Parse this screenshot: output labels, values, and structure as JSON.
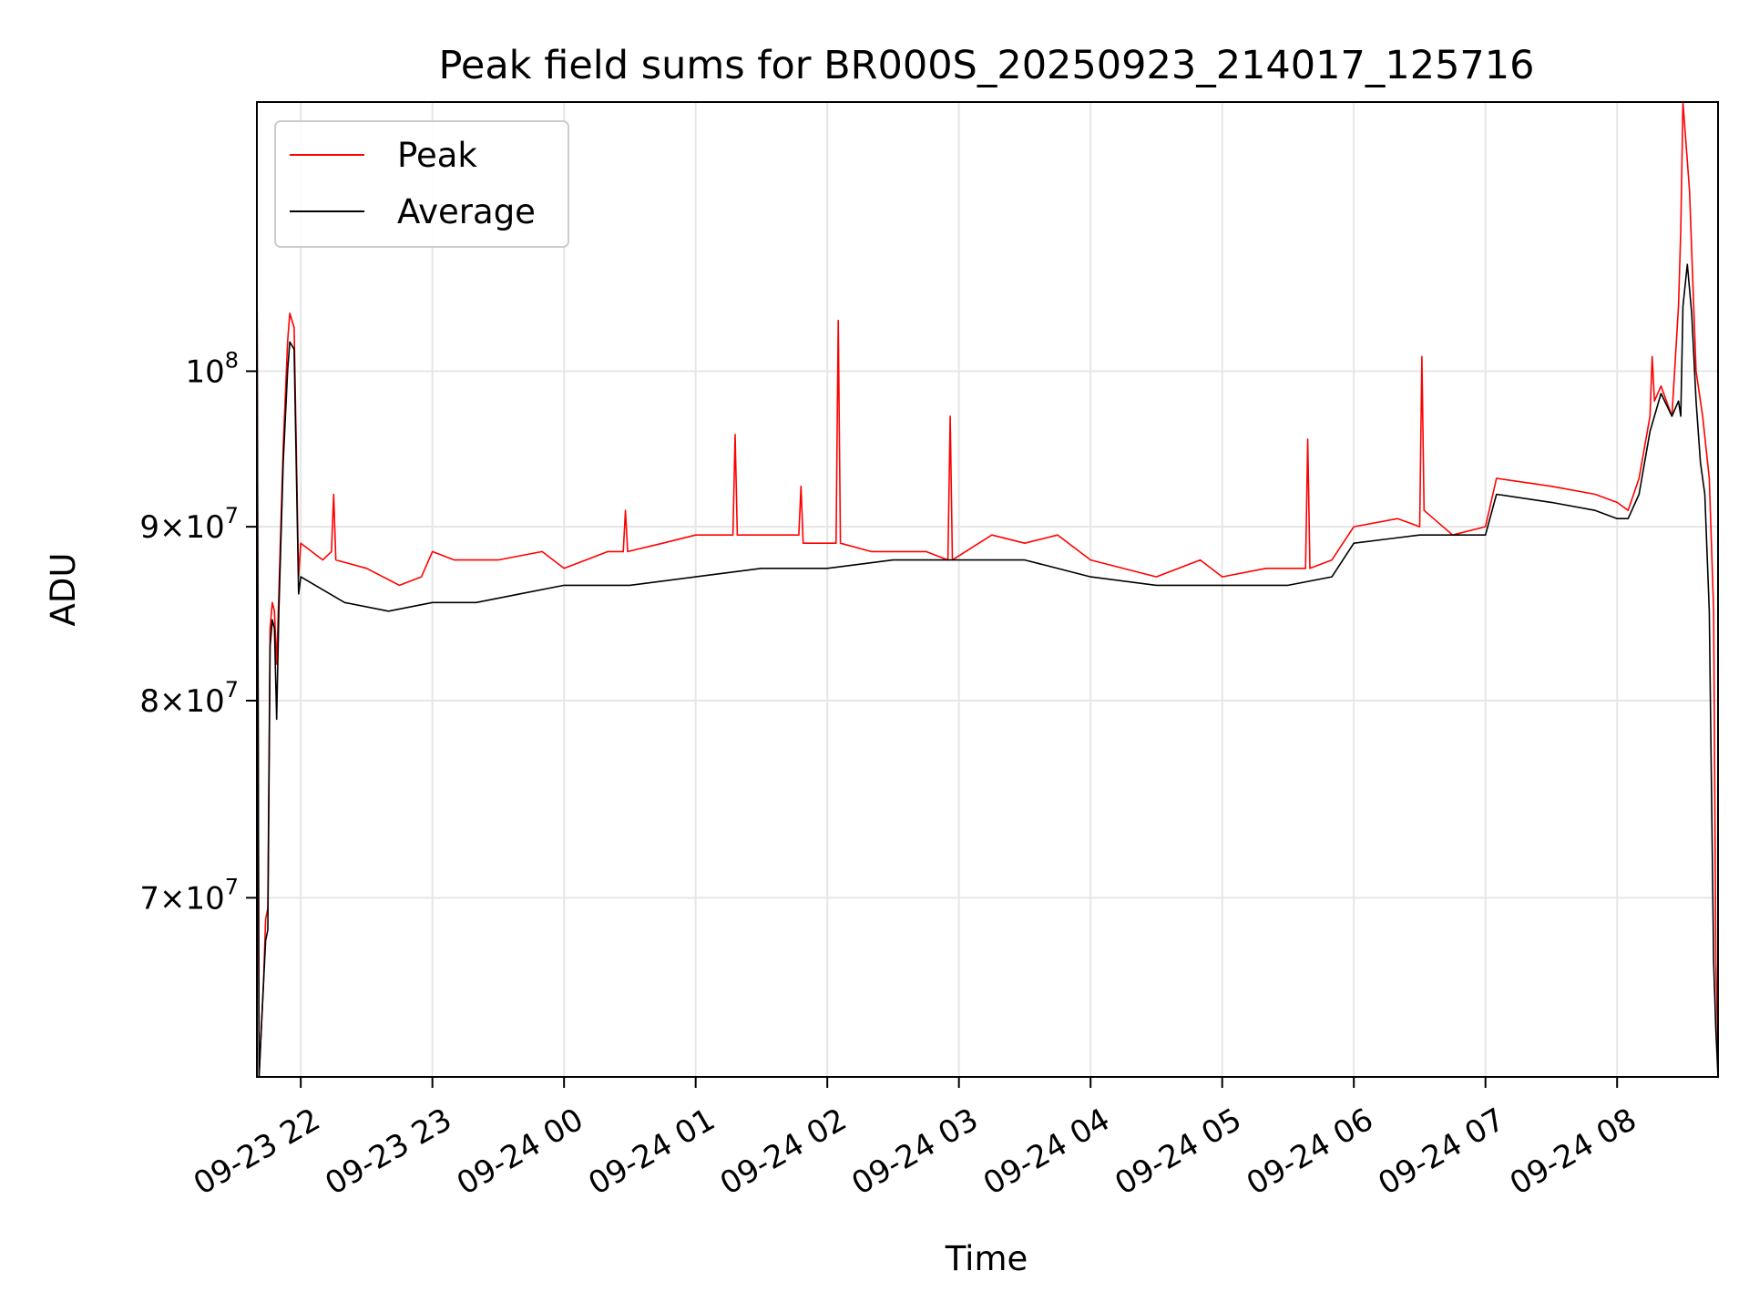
{
  "chart_data": {
    "type": "line",
    "title": "Peak field sums for BR000S_20250923_214017_125716",
    "xlabel": "Time",
    "ylabel": "ADU",
    "y_scale": "log",
    "ylim": [
      62000000,
      120000000
    ],
    "xlim": [
      "2025-09-23 21:40",
      "2025-09-24 08:46"
    ],
    "grid": true,
    "legend_position": "upper-left",
    "x_ticks": [
      {
        "t": "2025-09-23 22:00",
        "label": "09-23 22"
      },
      {
        "t": "2025-09-23 23:00",
        "label": "09-23 23"
      },
      {
        "t": "2025-09-24 00:00",
        "label": "09-24 00"
      },
      {
        "t": "2025-09-24 01:00",
        "label": "09-24 01"
      },
      {
        "t": "2025-09-24 02:00",
        "label": "09-24 02"
      },
      {
        "t": "2025-09-24 03:00",
        "label": "09-24 03"
      },
      {
        "t": "2025-09-24 04:00",
        "label": "09-24 04"
      },
      {
        "t": "2025-09-24 05:00",
        "label": "09-24 05"
      },
      {
        "t": "2025-09-24 06:00",
        "label": "09-24 06"
      },
      {
        "t": "2025-09-24 07:00",
        "label": "09-24 07"
      },
      {
        "t": "2025-09-24 08:00",
        "label": "09-24 08"
      }
    ],
    "y_ticks": [
      {
        "value": 70000000,
        "mantissa": "7",
        "exponent": "7"
      },
      {
        "value": 80000000,
        "mantissa": "8",
        "exponent": "7"
      },
      {
        "value": 90000000,
        "mantissa": "9",
        "exponent": "7"
      },
      {
        "value": 100000000,
        "mantissa": "",
        "exponent": "8"
      }
    ],
    "series": [
      {
        "name": "Peak",
        "color": "#ff0000",
        "x": [
          "2025-09-23 21:40",
          "2025-09-23 21:41",
          "2025-09-23 21:42",
          "2025-09-23 21:43",
          "2025-09-23 21:44",
          "2025-09-23 21:45",
          "2025-09-23 21:46",
          "2025-09-23 21:47",
          "2025-09-23 21:48",
          "2025-09-23 21:49",
          "2025-09-23 21:50",
          "2025-09-23 21:52",
          "2025-09-23 21:54",
          "2025-09-23 21:55",
          "2025-09-23 21:57",
          "2025-09-23 21:59",
          "2025-09-23 22:00",
          "2025-09-23 22:10",
          "2025-09-23 22:14",
          "2025-09-23 22:15",
          "2025-09-23 22:16",
          "2025-09-23 22:30",
          "2025-09-23 22:45",
          "2025-09-23 22:55",
          "2025-09-23 23:00",
          "2025-09-23 23:10",
          "2025-09-23 23:30",
          "2025-09-23 23:50",
          "2025-09-24 00:00",
          "2025-09-24 00:20",
          "2025-09-24 00:27",
          "2025-09-24 00:28",
          "2025-09-24 00:29",
          "2025-09-24 00:45",
          "2025-09-24 01:00",
          "2025-09-24 01:17",
          "2025-09-24 01:18",
          "2025-09-24 01:19",
          "2025-09-24 01:35",
          "2025-09-24 01:47",
          "2025-09-24 01:48",
          "2025-09-24 01:49",
          "2025-09-24 02:00",
          "2025-09-24 02:04",
          "2025-09-24 02:05",
          "2025-09-24 02:06",
          "2025-09-24 02:20",
          "2025-09-24 02:45",
          "2025-09-24 02:55",
          "2025-09-24 02:56",
          "2025-09-24 02:57",
          "2025-09-24 03:15",
          "2025-09-24 03:30",
          "2025-09-24 03:45",
          "2025-09-24 04:00",
          "2025-09-24 04:30",
          "2025-09-24 04:50",
          "2025-09-24 05:00",
          "2025-09-24 05:20",
          "2025-09-24 05:38",
          "2025-09-24 05:39",
          "2025-09-24 05:40",
          "2025-09-24 05:50",
          "2025-09-24 06:00",
          "2025-09-24 06:20",
          "2025-09-24 06:30",
          "2025-09-24 06:31",
          "2025-09-24 06:32",
          "2025-09-24 06:45",
          "2025-09-24 07:00",
          "2025-09-24 07:05",
          "2025-09-24 07:30",
          "2025-09-24 07:50",
          "2025-09-24 08:00",
          "2025-09-24 08:05",
          "2025-09-24 08:10",
          "2025-09-24 08:15",
          "2025-09-24 08:16",
          "2025-09-24 08:17",
          "2025-09-24 08:20",
          "2025-09-24 08:25",
          "2025-09-24 08:28",
          "2025-09-24 08:29",
          "2025-09-24 08:30",
          "2025-09-24 08:33",
          "2025-09-24 08:36",
          "2025-09-24 08:39",
          "2025-09-24 08:42",
          "2025-09-24 08:44",
          "2025-09-24 08:45",
          "2025-09-24 08:46"
        ],
        "values": [
          110000000,
          62000000,
          64000000,
          66000000,
          69000000,
          69500000,
          84000000,
          85500000,
          85000000,
          82000000,
          86000000,
          95000000,
          102000000,
          104000000,
          103000000,
          87000000,
          89000000,
          88000000,
          88500000,
          92000000,
          88000000,
          87500000,
          86500000,
          87000000,
          88500000,
          88000000,
          88000000,
          88500000,
          87500000,
          88500000,
          88500000,
          91000000,
          88500000,
          89000000,
          89500000,
          89500000,
          95800000,
          89500000,
          89500000,
          89500000,
          92500000,
          89000000,
          89000000,
          89000000,
          103500000,
          89000000,
          88500000,
          88500000,
          88000000,
          97000000,
          88000000,
          89500000,
          89000000,
          89500000,
          88000000,
          87000000,
          88000000,
          87000000,
          87500000,
          87500000,
          95500000,
          87500000,
          88000000,
          90000000,
          90500000,
          90000000,
          101000000,
          91000000,
          89500000,
          90000000,
          93000000,
          92500000,
          92000000,
          91500000,
          91000000,
          93000000,
          97000000,
          101000000,
          98000000,
          99000000,
          97000000,
          104500000,
          110000000,
          120000000,
          113000000,
          100000000,
          97000000,
          93000000,
          85000000,
          67000000,
          63000000
        ]
      },
      {
        "name": "Average",
        "color": "#000000",
        "x": [
          "2025-09-23 21:40",
          "2025-09-23 21:41",
          "2025-09-23 21:42",
          "2025-09-23 21:43",
          "2025-09-23 21:44",
          "2025-09-23 21:45",
          "2025-09-23 21:46",
          "2025-09-23 21:47",
          "2025-09-23 21:48",
          "2025-09-23 21:49",
          "2025-09-23 21:50",
          "2025-09-23 21:52",
          "2025-09-23 21:54",
          "2025-09-23 21:55",
          "2025-09-23 21:57",
          "2025-09-23 21:59",
          "2025-09-23 22:00",
          "2025-09-23 22:20",
          "2025-09-23 22:40",
          "2025-09-23 23:00",
          "2025-09-23 23:20",
          "2025-09-23 23:40",
          "2025-09-24 00:00",
          "2025-09-24 00:30",
          "2025-09-24 01:00",
          "2025-09-24 01:30",
          "2025-09-24 02:00",
          "2025-09-24 02:30",
          "2025-09-24 03:00",
          "2025-09-24 03:30",
          "2025-09-24 04:00",
          "2025-09-24 04:30",
          "2025-09-24 05:00",
          "2025-09-24 05:30",
          "2025-09-24 05:50",
          "2025-09-24 06:00",
          "2025-09-24 06:30",
          "2025-09-24 06:45",
          "2025-09-24 07:00",
          "2025-09-24 07:05",
          "2025-09-24 07:30",
          "2025-09-24 07:50",
          "2025-09-24 08:00",
          "2025-09-24 08:05",
          "2025-09-24 08:10",
          "2025-09-24 08:15",
          "2025-09-24 08:20",
          "2025-09-24 08:25",
          "2025-09-24 08:28",
          "2025-09-24 08:29",
          "2025-09-24 08:30",
          "2025-09-24 08:32",
          "2025-09-24 08:34",
          "2025-09-24 08:36",
          "2025-09-24 08:38",
          "2025-09-24 08:40",
          "2025-09-24 08:42",
          "2025-09-24 08:44",
          "2025-09-24 08:45",
          "2025-09-24 08:46"
        ],
        "values": [
          110000000,
          62000000,
          64000000,
          66000000,
          68000000,
          68500000,
          83000000,
          84500000,
          84000000,
          79000000,
          85000000,
          94000000,
          100000000,
          102000000,
          101500000,
          86000000,
          87000000,
          85500000,
          85000000,
          85500000,
          85500000,
          86000000,
          86500000,
          86500000,
          87000000,
          87500000,
          87500000,
          88000000,
          88000000,
          88000000,
          87000000,
          86500000,
          86500000,
          86500000,
          87000000,
          89000000,
          89500000,
          89500000,
          89500000,
          92000000,
          91500000,
          91000000,
          90500000,
          90500000,
          92000000,
          96000000,
          98500000,
          97000000,
          98000000,
          97000000,
          104500000,
          107500000,
          104000000,
          98000000,
          94000000,
          92000000,
          85000000,
          67000000,
          64000000,
          62000000
        ]
      }
    ]
  }
}
